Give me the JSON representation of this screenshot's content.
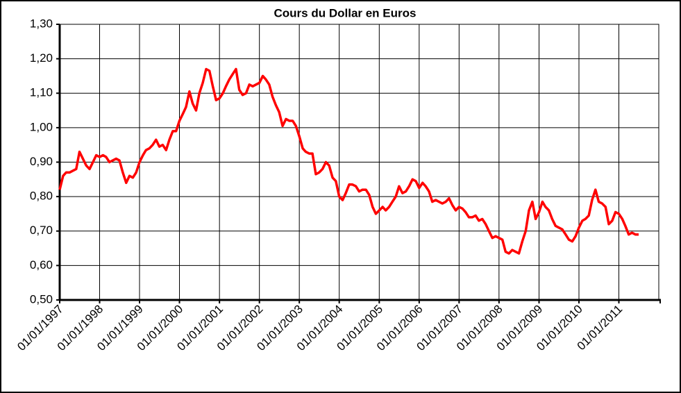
{
  "chart_data": {
    "type": "line",
    "title": "Cours du Dollar en Euros",
    "grid": true,
    "xlim": [
      "1997-01-01",
      "2012-01-01"
    ],
    "ylim": [
      0.5,
      1.3
    ],
    "yticks": [
      {
        "value": 0.5,
        "label": "0,50"
      },
      {
        "value": 0.6,
        "label": "0,60"
      },
      {
        "value": 0.7,
        "label": "0,70"
      },
      {
        "value": 0.8,
        "label": "0,80"
      },
      {
        "value": 0.9,
        "label": "0,90"
      },
      {
        "value": 1.0,
        "label": "1,00"
      },
      {
        "value": 1.1,
        "label": "1,10"
      },
      {
        "value": 1.2,
        "label": "1,20"
      },
      {
        "value": 1.3,
        "label": "1,30"
      }
    ],
    "xticks": [
      {
        "value": "1997-01-01",
        "label": "01/01/1997"
      },
      {
        "value": "1998-01-01",
        "label": "01/01/1998"
      },
      {
        "value": "1999-01-01",
        "label": "01/01/1999"
      },
      {
        "value": "2000-01-01",
        "label": "01/01/2000"
      },
      {
        "value": "2001-01-01",
        "label": "01/01/2001"
      },
      {
        "value": "2002-01-01",
        "label": "01/01/2002"
      },
      {
        "value": "2003-01-01",
        "label": "01/01/2003"
      },
      {
        "value": "2004-01-01",
        "label": "01/01/2004"
      },
      {
        "value": "2005-01-01",
        "label": "01/01/2005"
      },
      {
        "value": "2006-01-01",
        "label": "01/01/2006"
      },
      {
        "value": "2007-01-01",
        "label": "01/01/2007"
      },
      {
        "value": "2008-01-01",
        "label": "01/01/2008"
      },
      {
        "value": "2009-01-01",
        "label": "01/01/2009"
      },
      {
        "value": "2010-01-01",
        "label": "01/01/2010"
      },
      {
        "value": "2011-01-01",
        "label": "01/01/2011"
      }
    ],
    "x": [
      "1997-01-01",
      "1997-02-01",
      "1997-03-01",
      "1997-04-01",
      "1997-05-01",
      "1997-06-01",
      "1997-07-01",
      "1997-08-01",
      "1997-09-01",
      "1997-10-01",
      "1997-11-01",
      "1997-12-01",
      "1998-01-01",
      "1998-02-01",
      "1998-03-01",
      "1998-04-01",
      "1998-05-01",
      "1998-06-01",
      "1998-07-01",
      "1998-08-01",
      "1998-09-01",
      "1998-10-01",
      "1998-11-01",
      "1998-12-01",
      "1999-01-01",
      "1999-02-01",
      "1999-03-01",
      "1999-04-01",
      "1999-05-01",
      "1999-06-01",
      "1999-07-01",
      "1999-08-01",
      "1999-09-01",
      "1999-10-01",
      "1999-11-01",
      "1999-12-01",
      "2000-01-01",
      "2000-02-01",
      "2000-03-01",
      "2000-04-01",
      "2000-05-01",
      "2000-06-01",
      "2000-07-01",
      "2000-08-01",
      "2000-09-01",
      "2000-10-01",
      "2000-11-01",
      "2000-12-01",
      "2001-01-01",
      "2001-02-01",
      "2001-03-01",
      "2001-04-01",
      "2001-05-01",
      "2001-06-01",
      "2001-07-01",
      "2001-08-01",
      "2001-09-01",
      "2001-10-01",
      "2001-11-01",
      "2001-12-01",
      "2002-01-01",
      "2002-02-01",
      "2002-03-01",
      "2002-04-01",
      "2002-05-01",
      "2002-06-01",
      "2002-07-01",
      "2002-08-01",
      "2002-09-01",
      "2002-10-01",
      "2002-11-01",
      "2002-12-01",
      "2003-01-01",
      "2003-02-01",
      "2003-03-01",
      "2003-04-01",
      "2003-05-01",
      "2003-06-01",
      "2003-07-01",
      "2003-08-01",
      "2003-09-01",
      "2003-10-01",
      "2003-11-01",
      "2003-12-01",
      "2004-01-01",
      "2004-02-01",
      "2004-03-01",
      "2004-04-01",
      "2004-05-01",
      "2004-06-01",
      "2004-07-01",
      "2004-08-01",
      "2004-09-01",
      "2004-10-01",
      "2004-11-01",
      "2004-12-01",
      "2005-01-01",
      "2005-02-01",
      "2005-03-01",
      "2005-04-01",
      "2005-05-01",
      "2005-06-01",
      "2005-07-01",
      "2005-08-01",
      "2005-09-01",
      "2005-10-01",
      "2005-11-01",
      "2005-12-01",
      "2006-01-01",
      "2006-02-01",
      "2006-03-01",
      "2006-04-01",
      "2006-05-01",
      "2006-06-01",
      "2006-07-01",
      "2006-08-01",
      "2006-09-01",
      "2006-10-01",
      "2006-11-01",
      "2006-12-01",
      "2007-01-01",
      "2007-02-01",
      "2007-03-01",
      "2007-04-01",
      "2007-05-01",
      "2007-06-01",
      "2007-07-01",
      "2007-08-01",
      "2007-09-01",
      "2007-10-01",
      "2007-11-01",
      "2007-12-01",
      "2008-01-01",
      "2008-02-01",
      "2008-03-01",
      "2008-04-01",
      "2008-05-01",
      "2008-06-01",
      "2008-07-01",
      "2008-08-01",
      "2008-09-01",
      "2008-10-01",
      "2008-11-01",
      "2008-12-01",
      "2009-01-01",
      "2009-02-01",
      "2009-03-01",
      "2009-04-01",
      "2009-05-01",
      "2009-06-01",
      "2009-07-01",
      "2009-08-01",
      "2009-09-01",
      "2009-10-01",
      "2009-11-01",
      "2009-12-01",
      "2010-01-01",
      "2010-02-01",
      "2010-03-01",
      "2010-04-01",
      "2010-05-01",
      "2010-06-01",
      "2010-07-01",
      "2010-08-01",
      "2010-09-01",
      "2010-10-01",
      "2010-11-01",
      "2010-12-01",
      "2011-01-01",
      "2011-02-01",
      "2011-03-01",
      "2011-04-01",
      "2011-05-01",
      "2011-06-01",
      "2011-07-01"
    ],
    "series": [
      {
        "color": "#ff0000",
        "values": [
          0.82,
          0.86,
          0.87,
          0.87,
          0.875,
          0.88,
          0.93,
          0.91,
          0.89,
          0.88,
          0.9,
          0.92,
          0.915,
          0.92,
          0.915,
          0.9,
          0.905,
          0.91,
          0.905,
          0.87,
          0.84,
          0.86,
          0.855,
          0.87,
          0.9,
          0.92,
          0.935,
          0.94,
          0.95,
          0.965,
          0.945,
          0.95,
          0.935,
          0.965,
          0.99,
          0.99,
          1.02,
          1.04,
          1.06,
          1.105,
          1.07,
          1.05,
          1.1,
          1.13,
          1.17,
          1.165,
          1.12,
          1.08,
          1.085,
          1.1,
          1.12,
          1.14,
          1.155,
          1.17,
          1.11,
          1.095,
          1.1,
          1.125,
          1.12,
          1.125,
          1.13,
          1.15,
          1.14,
          1.125,
          1.09,
          1.065,
          1.045,
          1.005,
          1.025,
          1.02,
          1.02,
          1.005,
          0.975,
          0.94,
          0.93,
          0.925,
          0.925,
          0.865,
          0.87,
          0.88,
          0.9,
          0.89,
          0.855,
          0.845,
          0.8,
          0.79,
          0.81,
          0.835,
          0.835,
          0.83,
          0.815,
          0.82,
          0.82,
          0.805,
          0.77,
          0.75,
          0.76,
          0.77,
          0.76,
          0.77,
          0.785,
          0.8,
          0.83,
          0.81,
          0.815,
          0.83,
          0.85,
          0.845,
          0.825,
          0.84,
          0.83,
          0.815,
          0.785,
          0.79,
          0.785,
          0.78,
          0.785,
          0.795,
          0.775,
          0.76,
          0.77,
          0.765,
          0.755,
          0.74,
          0.74,
          0.745,
          0.73,
          0.735,
          0.72,
          0.7,
          0.68,
          0.685,
          0.68,
          0.675,
          0.64,
          0.635,
          0.645,
          0.64,
          0.635,
          0.67,
          0.7,
          0.76,
          0.785,
          0.735,
          0.755,
          0.785,
          0.77,
          0.76,
          0.735,
          0.715,
          0.71,
          0.705,
          0.69,
          0.675,
          0.67,
          0.685,
          0.71,
          0.73,
          0.735,
          0.745,
          0.79,
          0.82,
          0.785,
          0.78,
          0.77,
          0.72,
          0.73,
          0.755,
          0.75,
          0.735,
          0.715,
          0.69,
          0.695,
          0.69,
          0.69
        ]
      }
    ]
  }
}
